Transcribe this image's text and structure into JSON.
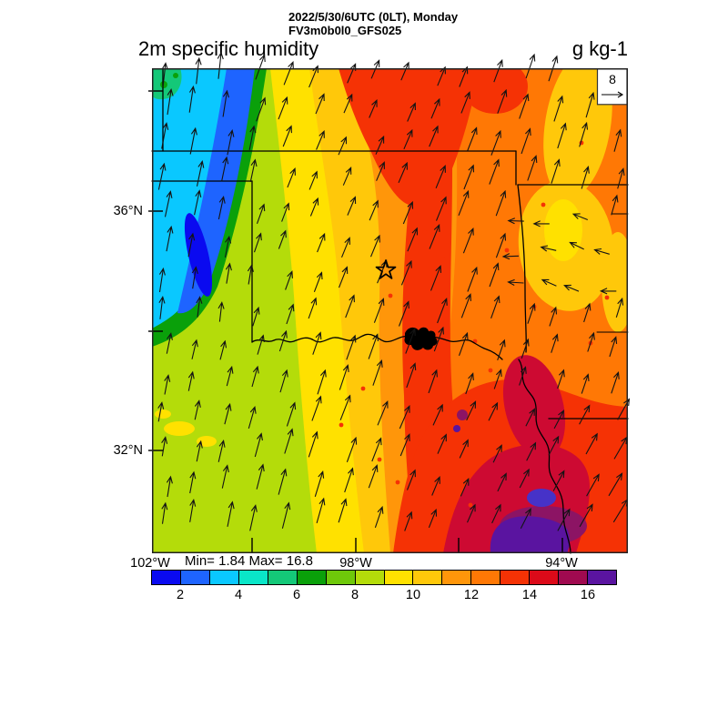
{
  "header": {
    "datetime_line": "2022/5/30/6UTC (0LT), Monday",
    "model_line": "FV3m0b0l0_GFS025",
    "variable_title": "2m specific humidity",
    "units_title": "g kg-1"
  },
  "map": {
    "reference_value": "8",
    "y_axis_labels": [
      "36°N",
      "32°N"
    ],
    "x_axis_labels": [
      "102°W",
      "98°W",
      "94°W"
    ],
    "stats_text": "Min= 1.84 Max= 16.8",
    "features": [
      "state borders",
      "Red River with lake shown in black",
      "open star marker near Oklahoma City"
    ],
    "extra_colors": {
      "crimson": "#cd0a32",
      "slate": "#4632c8",
      "maroon": "#8c1464"
    }
  },
  "colorbar": {
    "tick_labels": [
      "2",
      "4",
      "6",
      "8",
      "10",
      "12",
      "14",
      "16"
    ],
    "colors": [
      "#0a0af0",
      "#1e64ff",
      "#0ac8ff",
      "#0ae6c8",
      "#14c878",
      "#0aa00a",
      "#6ec80a",
      "#b4dc0a",
      "#ffe100",
      "#ffc80a",
      "#ff960a",
      "#ff7805",
      "#f53205",
      "#dc0a19",
      "#a00a50",
      "#5a14a0"
    ]
  },
  "chart_data": {
    "type": "heatmap",
    "title": "2m specific humidity",
    "units": "g kg-1",
    "valid_time": "2022/5/30/6UTC (0LT), Monday",
    "model_run": "FV3m0b0l0_GFS025",
    "min": 1.84,
    "max": 16.8,
    "levels": [
      2,
      3,
      4,
      5,
      6,
      7,
      8,
      9,
      10,
      11,
      12,
      13,
      14,
      15,
      16
    ],
    "labeled_levels": [
      2,
      4,
      6,
      8,
      10,
      12,
      14,
      16
    ],
    "lat_ticks": [
      "36°N",
      "32°N"
    ],
    "lon_ticks": [
      "102°W",
      "98°W",
      "94°W"
    ],
    "lon_range_deg_w": [
      102.1,
      92.9
    ],
    "lat_range_deg_n": [
      30.4,
      38.4
    ],
    "wind_reference_value": 8,
    "wind_description": "Surface wind vectors, predominantly southerly (arrows point north), veering to south-southwesterly / disturbed westerly flow in the east",
    "approx_grid_lon_deg_w": [
      102,
      100.7,
      99.4,
      98.1,
      96.8,
      95.5,
      94.2,
      93
    ],
    "approx_grid_lat_deg_n": [
      38,
      37,
      36,
      35,
      34,
      33,
      32,
      31
    ],
    "approx_values_g_per_kg": [
      [
        5,
        3,
        9,
        13,
        13,
        12,
        11,
        10
      ],
      [
        4,
        3,
        9,
        12,
        14,
        12,
        12,
        11
      ],
      [
        4,
        2,
        8,
        10,
        12,
        13,
        12,
        11
      ],
      [
        6,
        5,
        9,
        10,
        11,
        13,
        11,
        10
      ],
      [
        8,
        8,
        9,
        10,
        11,
        13,
        12,
        12
      ],
      [
        8,
        9,
        10,
        10,
        12,
        14,
        14,
        13
      ],
      [
        8,
        9,
        10,
        11,
        13,
        14,
        15,
        14
      ],
      [
        9,
        9,
        10,
        12,
        13,
        15,
        16,
        14
      ]
    ],
    "notable_regions": [
      {
        "where": "northwest band (eastern NM / far west TX-OK panhandles)",
        "value_g_per_kg": "2-5 (blue/cyan dry slot, min 1.84)"
      },
      {
        "where": "west / southwest (yellow-green)",
        "value_g_per_kg": "8-9"
      },
      {
        "where": "central corridor (orange)",
        "value_g_per_kg": "10-12"
      },
      {
        "where": "north-central red plume and central red band",
        "value_g_per_kg": "13-14"
      },
      {
        "where": "southeast (east Texas, purple core)",
        "value_g_per_kg": "15-16.8 (max)"
      }
    ]
  }
}
